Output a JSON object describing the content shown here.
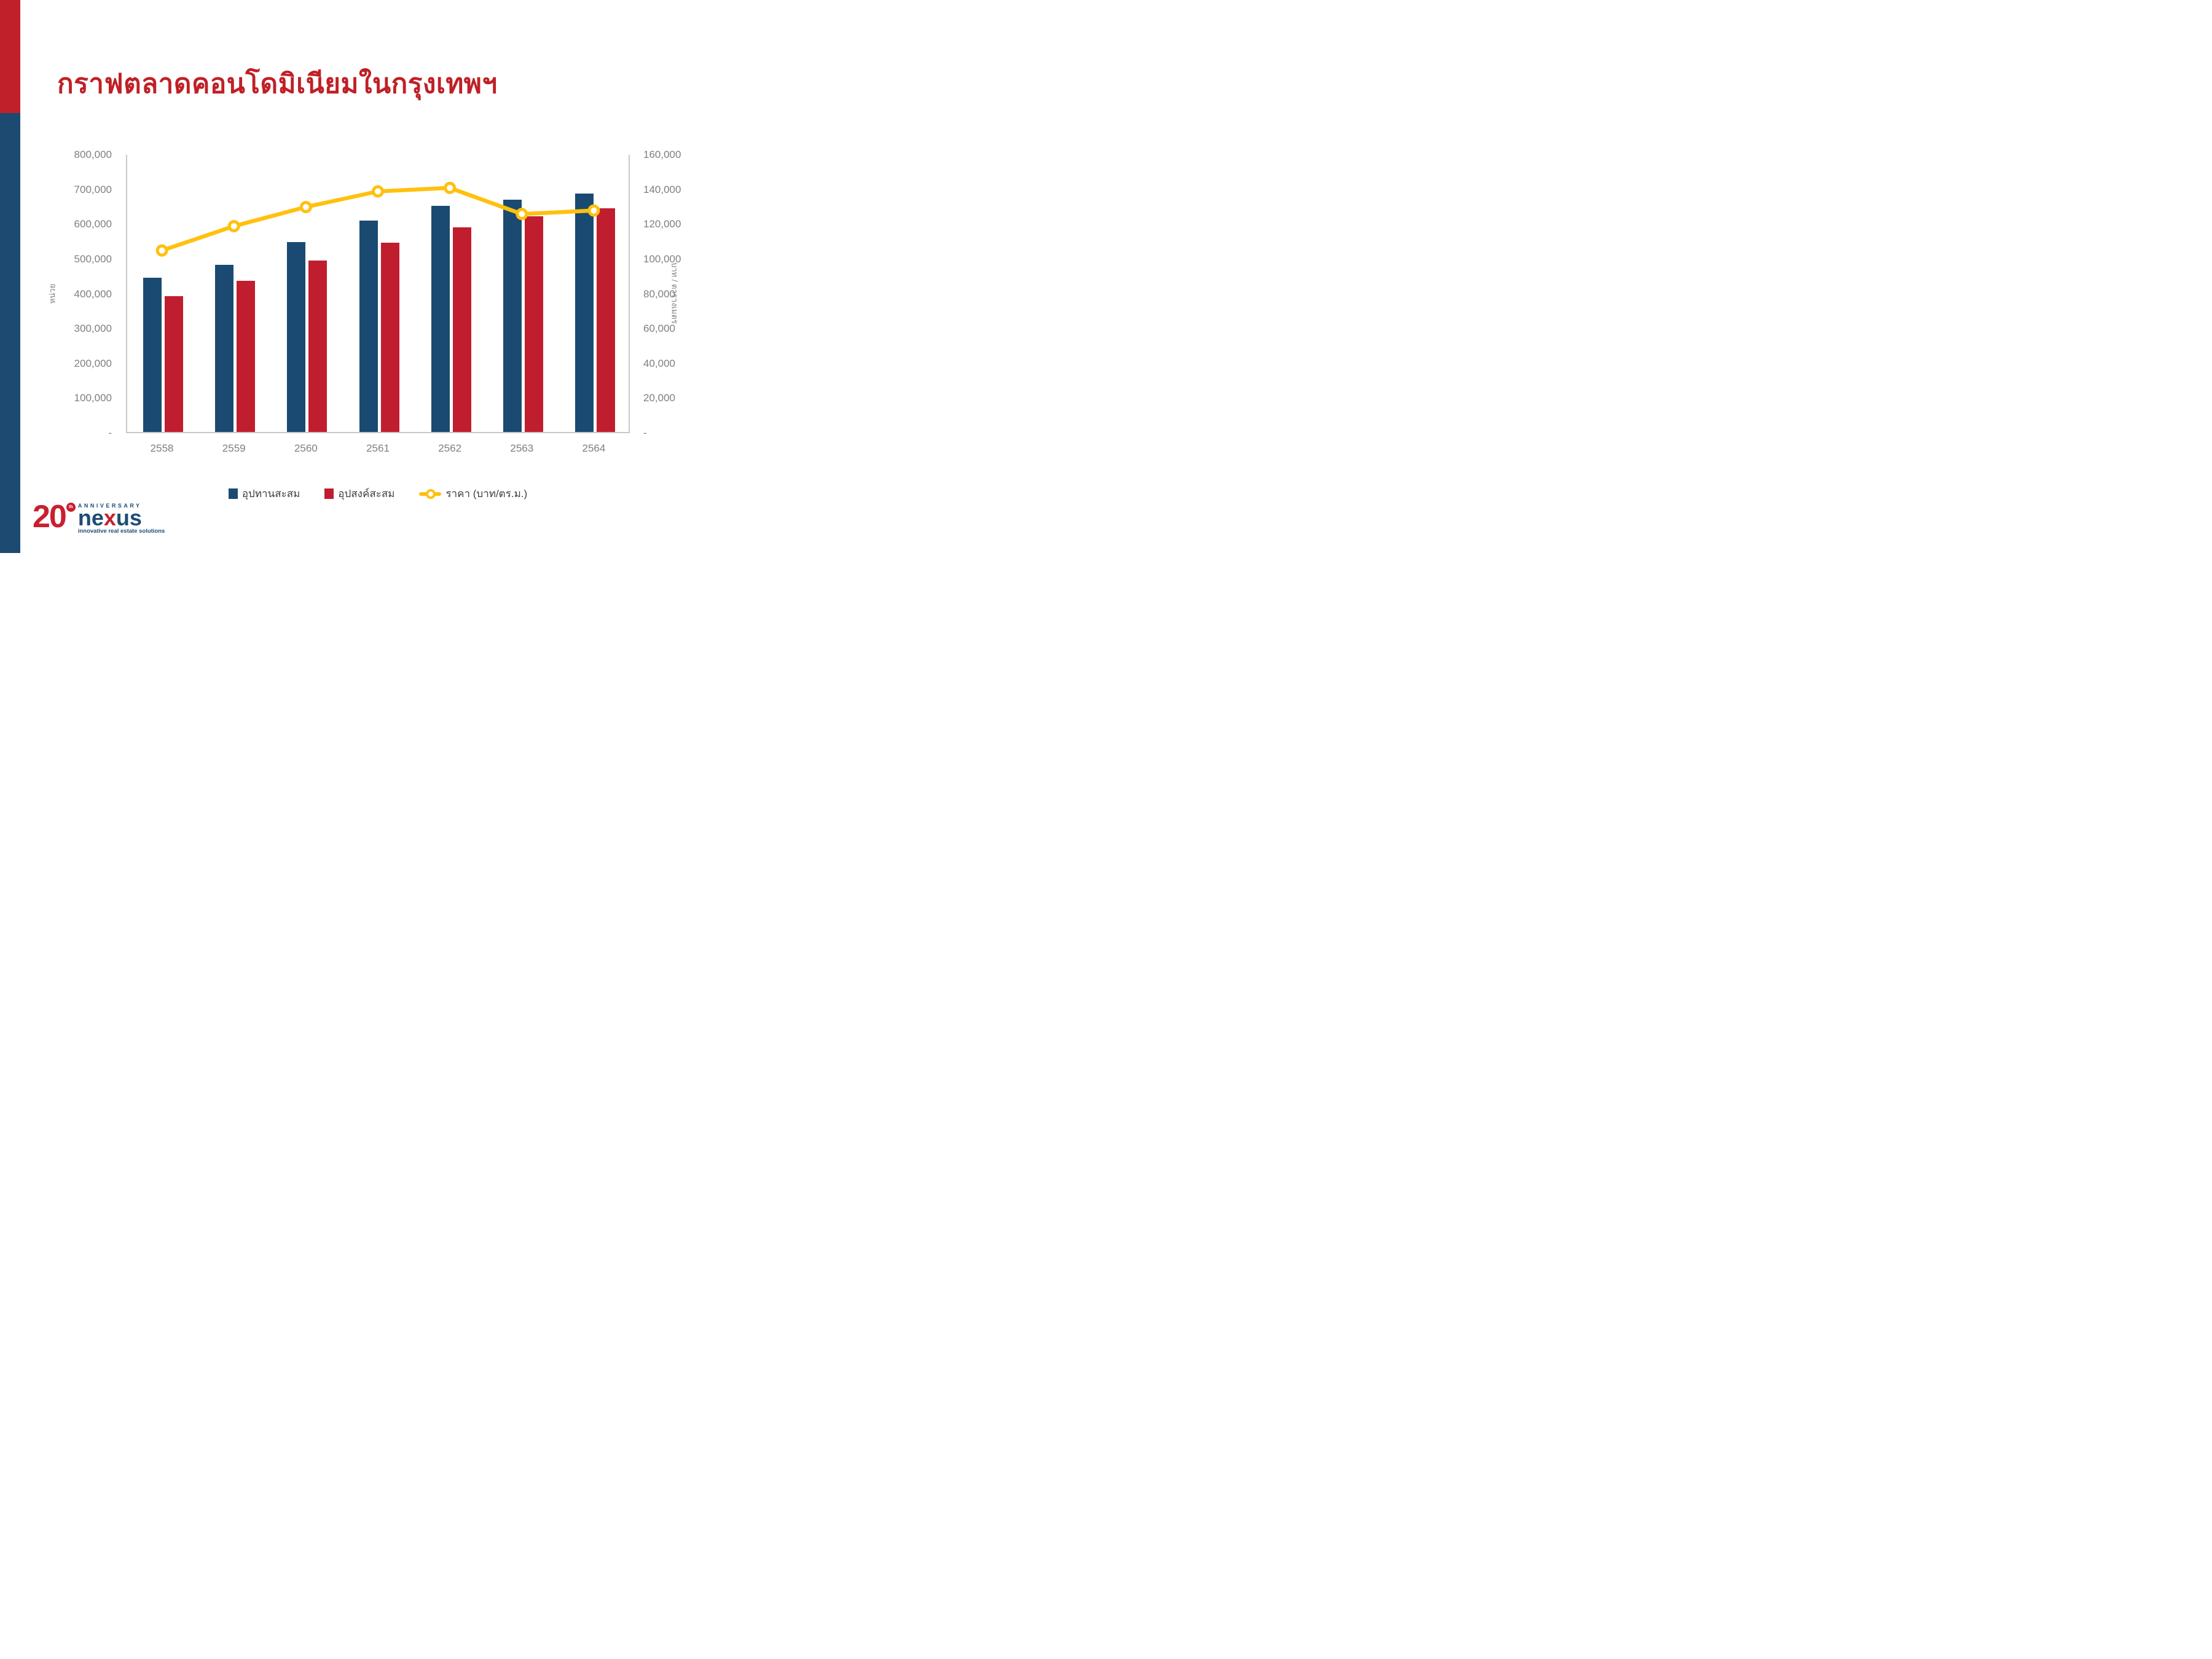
{
  "slide": {
    "title": "กราฟตลาดคอนโดมิเนียมในกรุงเทพฯ",
    "background_color": "#FFFFFF",
    "sidebar_colors": {
      "top": "#C0202A",
      "bottom": "#1C4A70"
    }
  },
  "chart_data": {
    "type": "combo-bar-line",
    "title": "กราฟตลาดคอนโดมิเนียมในกรุงเทพฯ",
    "categories": [
      "2558",
      "2559",
      "2560",
      "2561",
      "2562",
      "2563",
      "2564"
    ],
    "series": [
      {
        "name": "อุปทานสะสม",
        "type": "bar",
        "axis": "left",
        "color": "#1A4A71",
        "values": [
          443000,
          481000,
          546000,
          607000,
          650000,
          668000,
          686000
        ]
      },
      {
        "name": "อุปสงค์สะสม",
        "type": "bar",
        "axis": "left",
        "color": "#C01E2E",
        "values": [
          390000,
          435000,
          493000,
          544000,
          588000,
          620000,
          643000
        ]
      },
      {
        "name": "ราคา (บาท/ตร.ม.)",
        "type": "line",
        "axis": "right",
        "color": "#FFC10E",
        "marker": "circle-white-fill",
        "values": [
          105000,
          119000,
          130000,
          139000,
          141000,
          126000,
          128000
        ]
      }
    ],
    "left_axis": {
      "title": "หน่วย",
      "min": 0,
      "max": 800000,
      "tick_step": 100000,
      "tick_labels": [
        "800,000",
        "700,000",
        "600,000",
        "500,000",
        "400,000",
        "300,000",
        "200,000",
        "100,000",
        "-"
      ]
    },
    "right_axis": {
      "title": "บาท / ตารางเมตร",
      "min": 0,
      "max": 160000,
      "tick_step": 20000,
      "tick_labels": [
        "160,000",
        "140,000",
        "120,000",
        "100,000",
        "80,000",
        "60,000",
        "40,000",
        "20,000",
        "-"
      ]
    },
    "legend_position": "bottom",
    "grid": false
  },
  "legend": {
    "supply_label": "อุปทานสะสม",
    "demand_label": "อุปสงค์สะสม",
    "price_label": "ราคา (บาท/ตร.ม.)"
  },
  "logo": {
    "number": "20",
    "ordinal": "th",
    "anniversary": "ANNIVERSARY",
    "nexus_ne": "ne",
    "nexus_x": "x",
    "nexus_us": "us",
    "tagline": "innovative real estate solutions"
  }
}
